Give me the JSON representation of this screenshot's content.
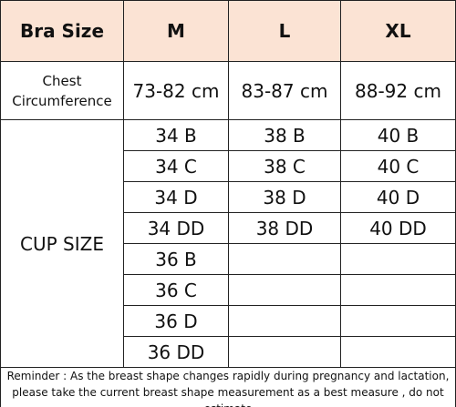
{
  "table": {
    "header": [
      "Bra Size",
      "M",
      "L",
      "XL"
    ],
    "chest": {
      "label": "Chest Circumference",
      "values": [
        "73-82 cm",
        "83-87 cm",
        "88-92 cm"
      ]
    },
    "cup": {
      "label": "CUP SIZE",
      "rows": [
        [
          "34 B",
          "38 B",
          "40 B"
        ],
        [
          "34 C",
          "38 C",
          "40 C"
        ],
        [
          "34 D",
          "38 D",
          "40 D"
        ],
        [
          "34 DD",
          "38 DD",
          "40 DD"
        ],
        [
          "36 B"
        ],
        [
          "36 C"
        ],
        [
          "36 D"
        ],
        [
          "36 DD"
        ]
      ]
    },
    "reminder": "Reminder : As the breast shape changes rapidly during pregnancy and lactation, please take the current breast shape measurement as a best measure , do not estimate"
  }
}
